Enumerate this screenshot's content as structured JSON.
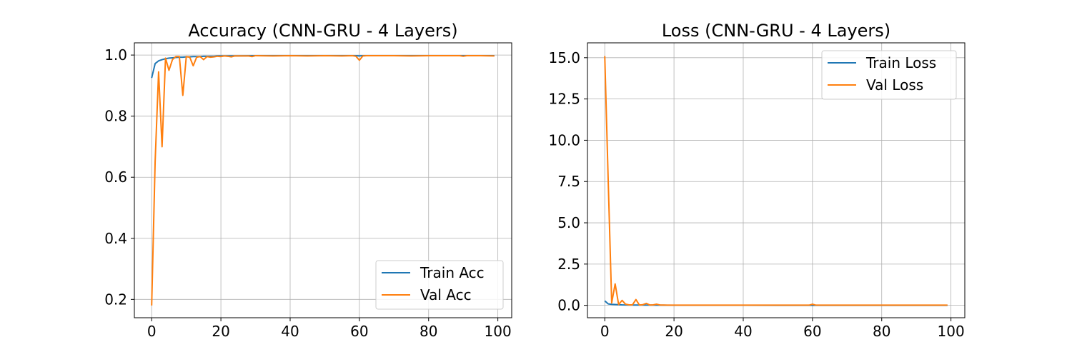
{
  "chart_data": [
    {
      "type": "line",
      "title": "Accuracy (CNN-GRU - 4 Layers)",
      "xlabel": "",
      "ylabel": "",
      "xlim": [
        -5,
        104
      ],
      "ylim": [
        0.14,
        1.04
      ],
      "xticks": [
        0,
        20,
        40,
        60,
        80,
        100
      ],
      "xtick_labels": [
        "0",
        "20",
        "40",
        "60",
        "80",
        "100"
      ],
      "yticks": [
        0.2,
        0.4,
        0.6,
        0.8,
        1.0
      ],
      "ytick_labels": [
        "0.2",
        "0.4",
        "0.6",
        "0.8",
        "1.0"
      ],
      "grid": true,
      "legend_position": "lower-right",
      "series": [
        {
          "name": "Train Acc",
          "color": "#1f77b4",
          "x": [
            0,
            1,
            2,
            3,
            4,
            5,
            6,
            7,
            8,
            9,
            10,
            11,
            12,
            13,
            14,
            15,
            16,
            17,
            18,
            19,
            20,
            25,
            30,
            35,
            40,
            45,
            50,
            55,
            59,
            60,
            61,
            65,
            70,
            75,
            80,
            85,
            90,
            95,
            99
          ],
          "y": [
            0.925,
            0.972,
            0.981,
            0.985,
            0.988,
            0.99,
            0.991,
            0.992,
            0.993,
            0.993,
            0.994,
            0.994,
            0.995,
            0.995,
            0.995,
            0.996,
            0.996,
            0.996,
            0.996,
            0.997,
            0.997,
            0.997,
            0.998,
            0.998,
            0.998,
            0.998,
            0.998,
            0.998,
            0.998,
            0.997,
            0.998,
            0.998,
            0.998,
            0.998,
            0.998,
            0.998,
            0.998,
            0.998,
            0.998
          ]
        },
        {
          "name": "Val Acc",
          "color": "#ff7f0e",
          "x": [
            0,
            1,
            2,
            3,
            4,
            5,
            6,
            7,
            8,
            9,
            10,
            11,
            12,
            13,
            14,
            15,
            16,
            17,
            18,
            19,
            20,
            21,
            22,
            23,
            24,
            25,
            28,
            29,
            30,
            35,
            40,
            45,
            50,
            55,
            58,
            59,
            60,
            61,
            62,
            65,
            70,
            75,
            80,
            85,
            89,
            90,
            91,
            95,
            99
          ],
          "y": [
            0.18,
            0.65,
            0.945,
            0.7,
            0.99,
            0.95,
            0.985,
            0.995,
            0.995,
            0.868,
            0.995,
            0.993,
            0.965,
            0.993,
            0.995,
            0.985,
            0.995,
            0.993,
            0.994,
            0.996,
            0.995,
            0.997,
            0.996,
            0.994,
            0.997,
            0.997,
            0.997,
            0.995,
            0.998,
            0.997,
            0.998,
            0.997,
            0.998,
            0.997,
            0.998,
            0.996,
            0.983,
            0.997,
            0.998,
            0.998,
            0.998,
            0.997,
            0.998,
            0.998,
            0.998,
            0.996,
            0.998,
            0.998,
            0.997
          ]
        }
      ]
    },
    {
      "type": "line",
      "title": "Loss (CNN-GRU - 4 Layers)",
      "xlabel": "",
      "ylabel": "",
      "xlim": [
        -5,
        104
      ],
      "ylim": [
        -0.75,
        15.9
      ],
      "xticks": [
        0,
        20,
        40,
        60,
        80,
        100
      ],
      "xtick_labels": [
        "0",
        "20",
        "40",
        "60",
        "80",
        "100"
      ],
      "yticks": [
        0.0,
        2.5,
        5.0,
        7.5,
        10.0,
        12.5,
        15.0
      ],
      "ytick_labels": [
        "0.0",
        "2.5",
        "5.0",
        "7.5",
        "10.0",
        "12.5",
        "15.0"
      ],
      "grid": true,
      "legend_position": "upper-right",
      "series": [
        {
          "name": "Train Loss",
          "color": "#1f77b4",
          "x": [
            0,
            1,
            2,
            3,
            4,
            5,
            6,
            7,
            8,
            9,
            10,
            15,
            20,
            30,
            40,
            50,
            60,
            70,
            80,
            90,
            99
          ],
          "y": [
            0.27,
            0.09,
            0.06,
            0.05,
            0.04,
            0.03,
            0.025,
            0.02,
            0.018,
            0.016,
            0.015,
            0.01,
            0.008,
            0.006,
            0.005,
            0.004,
            0.004,
            0.003,
            0.003,
            0.003,
            0.003
          ]
        },
        {
          "name": "Val Loss",
          "color": "#ff7f0e",
          "x": [
            0,
            1,
            2,
            3,
            4,
            5,
            6,
            7,
            8,
            9,
            10,
            11,
            12,
            13,
            14,
            15,
            16,
            17,
            18,
            20,
            25,
            30,
            40,
            50,
            59,
            60,
            61,
            70,
            80,
            90,
            99
          ],
          "y": [
            15.1,
            7.5,
            0.15,
            1.3,
            0.05,
            0.3,
            0.07,
            0.03,
            0.03,
            0.35,
            0.02,
            0.04,
            0.12,
            0.02,
            0.03,
            0.07,
            0.02,
            0.02,
            0.01,
            0.01,
            0.01,
            0.01,
            0.01,
            0.01,
            0.01,
            0.07,
            0.01,
            0.01,
            0.01,
            0.01,
            0.01
          ]
        }
      ]
    }
  ]
}
